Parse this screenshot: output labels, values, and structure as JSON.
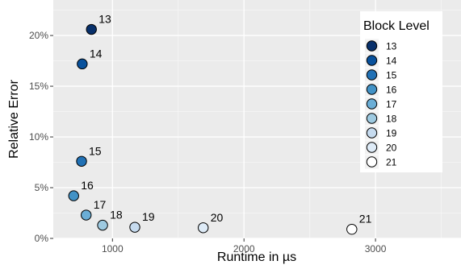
{
  "chart_data": {
    "type": "scatter",
    "title": "",
    "xlabel": "Runtime in µs",
    "ylabel": "Relative Error",
    "xlim": [
      550,
      3650
    ],
    "ylim": [
      0,
      23.5
    ],
    "x_ticks": [
      1000,
      2000,
      3000
    ],
    "x_tick_labels": [
      "1000",
      "2000",
      "3000"
    ],
    "y_ticks": [
      0,
      5,
      10,
      15,
      20
    ],
    "y_tick_labels": [
      "0%",
      "5%",
      "10%",
      "15%",
      "20%"
    ],
    "grid": true,
    "legend": {
      "title": "Block Level",
      "placement": "right"
    },
    "series": [
      {
        "name": "13",
        "x": 840,
        "y": 20.6,
        "color": "#08306b"
      },
      {
        "name": "14",
        "x": 770,
        "y": 17.2,
        "color": "#08519c"
      },
      {
        "name": "15",
        "x": 765,
        "y": 7.6,
        "color": "#2171b5"
      },
      {
        "name": "16",
        "x": 705,
        "y": 4.2,
        "color": "#4292c6"
      },
      {
        "name": "17",
        "x": 800,
        "y": 2.3,
        "color": "#6baed6"
      },
      {
        "name": "18",
        "x": 925,
        "y": 1.3,
        "color": "#9ecae1"
      },
      {
        "name": "19",
        "x": 1170,
        "y": 1.1,
        "color": "#c6dbef"
      },
      {
        "name": "20",
        "x": 1690,
        "y": 1.05,
        "color": "#deebf7"
      },
      {
        "name": "21",
        "x": 2820,
        "y": 0.9,
        "color": "#ffffff"
      }
    ]
  }
}
